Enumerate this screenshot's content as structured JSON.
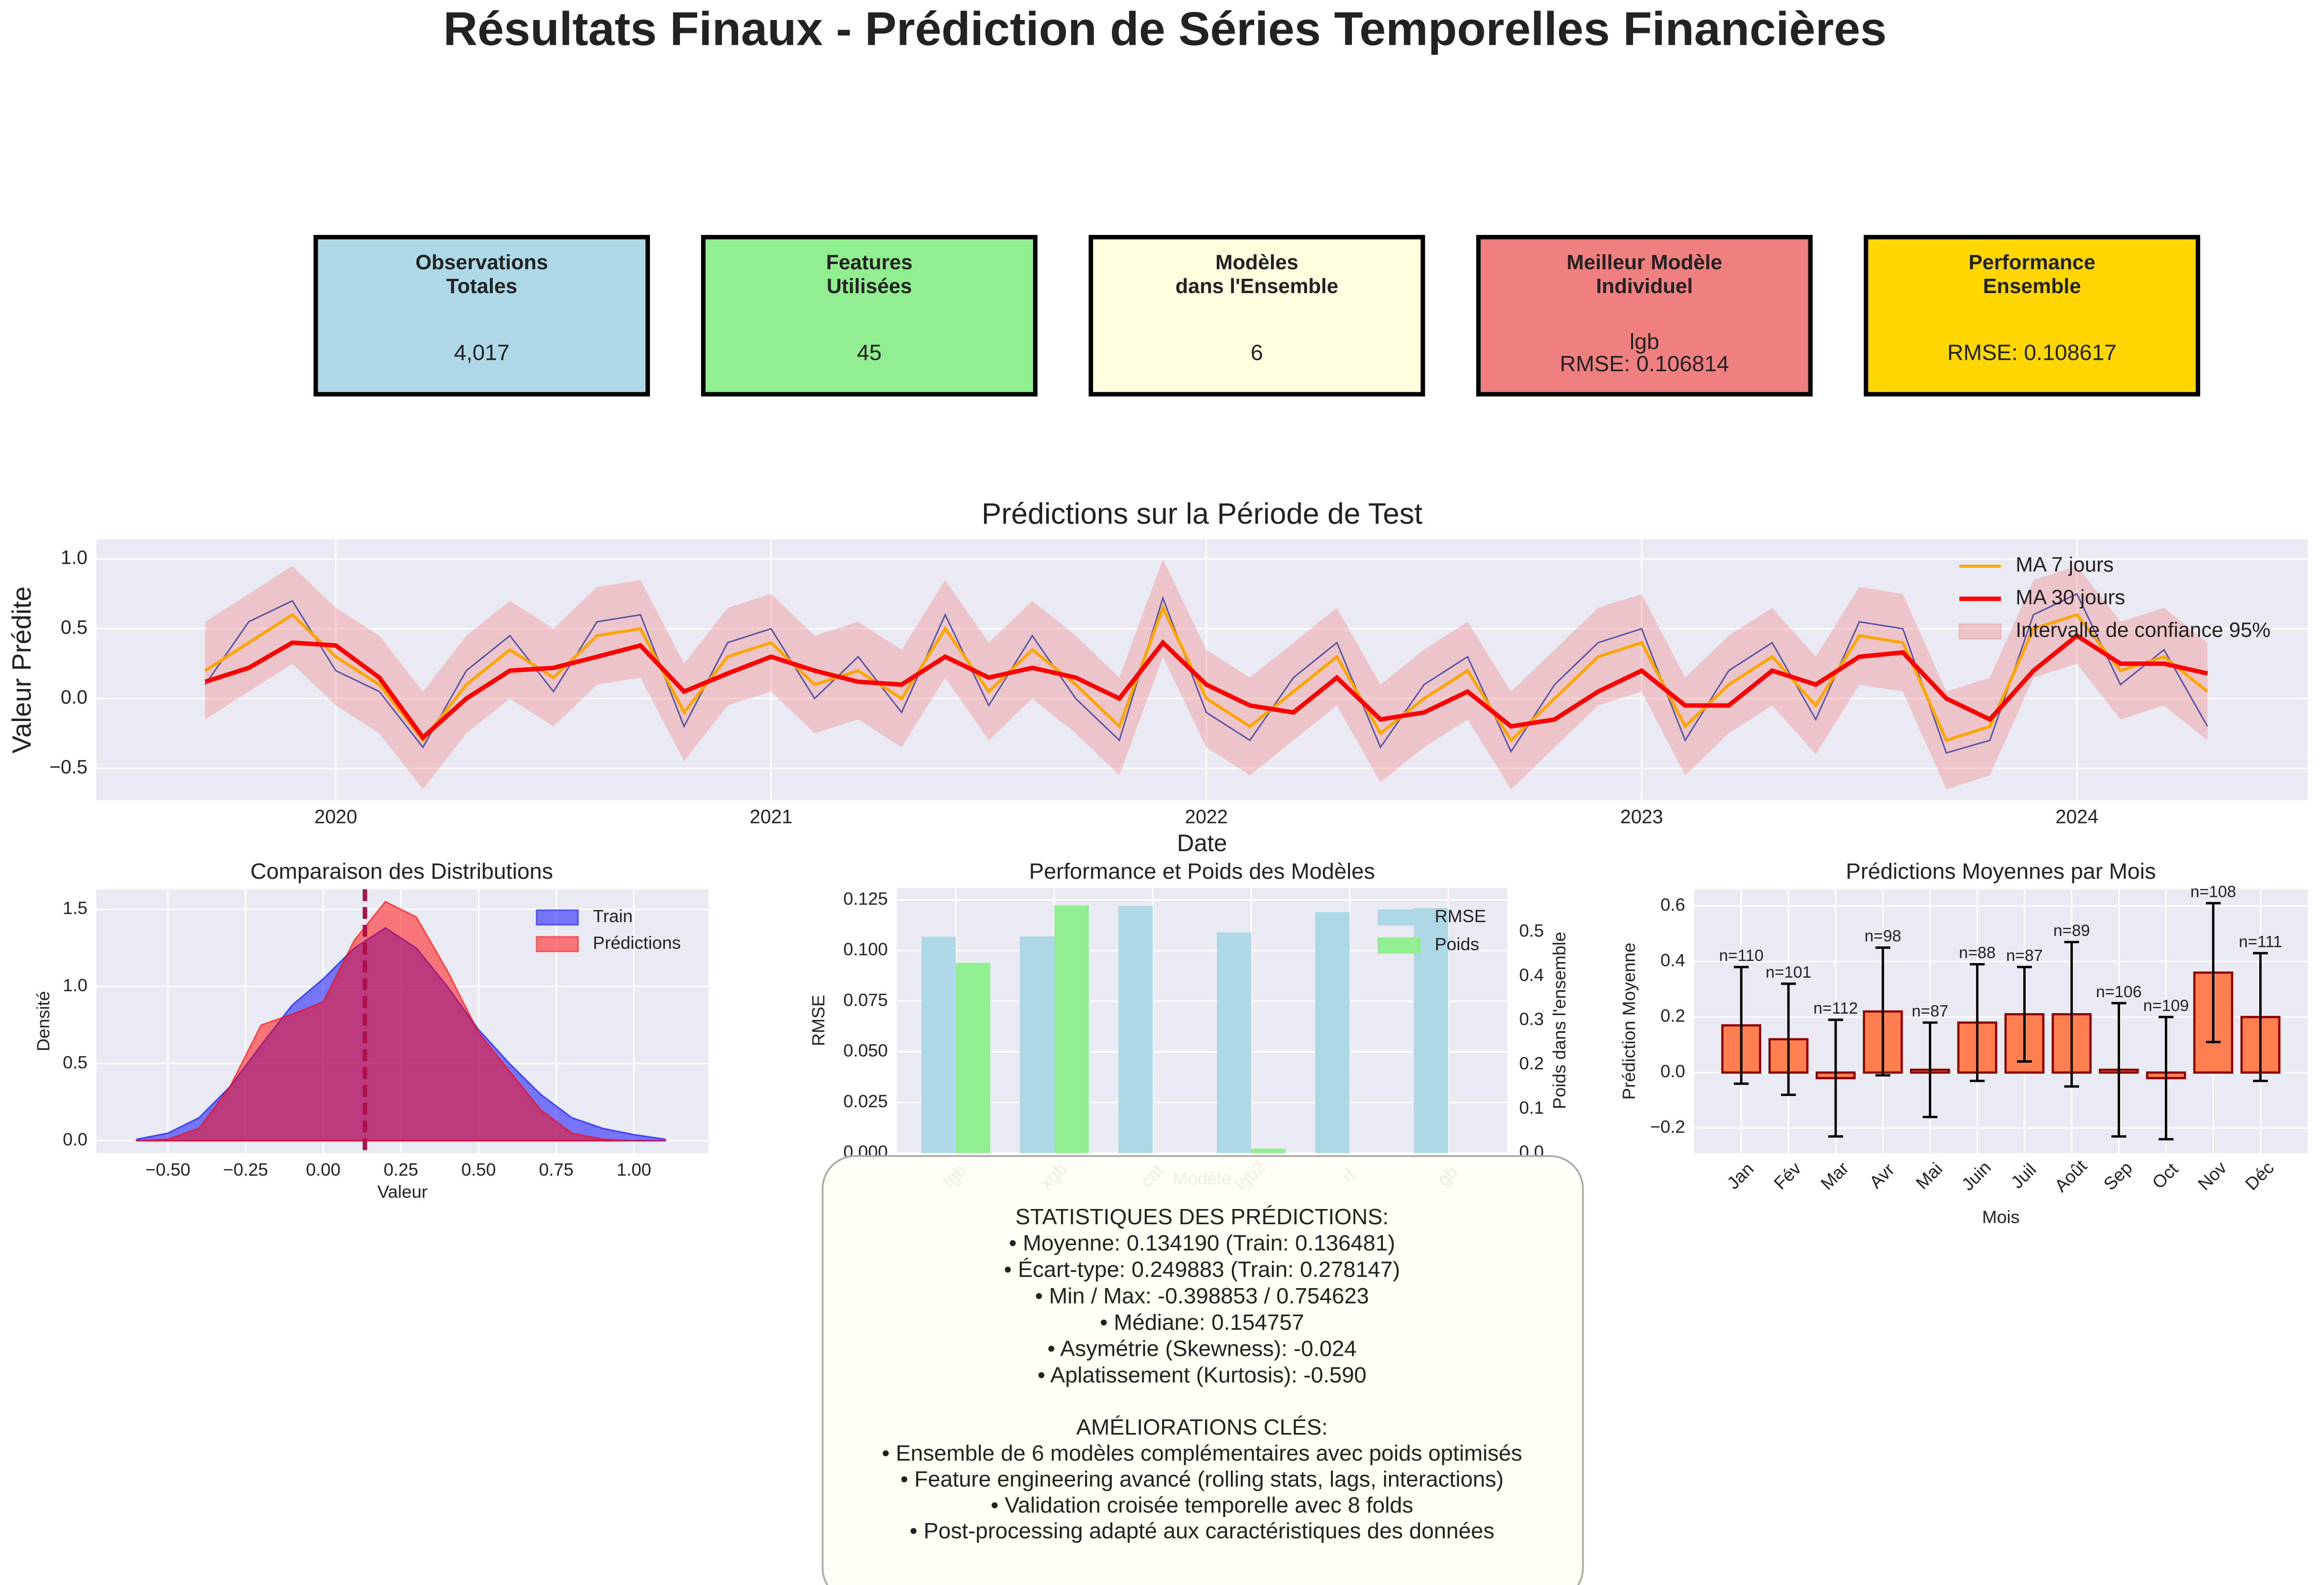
{
  "title": "Résultats Finaux - Prédiction de Séries Temporelles Financières",
  "cards": [
    {
      "title": [
        "Observations",
        "Totales"
      ],
      "value": [
        "4,017"
      ],
      "color": "#add8e6"
    },
    {
      "title": [
        "Features",
        "Utilisées"
      ],
      "value": [
        "45"
      ],
      "color": "#90ee90"
    },
    {
      "title": [
        "Modèles",
        "dans l'Ensemble"
      ],
      "value": [
        "6"
      ],
      "color": "#ffffe0"
    },
    {
      "title": [
        "Meilleur Modèle",
        "Individuel"
      ],
      "value": [
        "lgb",
        "RMSE: 0.106814"
      ],
      "color": "#f08080"
    },
    {
      "title": [
        "Performance",
        "Ensemble"
      ],
      "value": [
        "RMSE: 0.108617"
      ],
      "color": "#ffd700"
    }
  ],
  "stats_box": {
    "stats": [
      "STATISTIQUES DES PRÉDICTIONS:",
      "• Moyenne: 0.134190 (Train: 0.136481)",
      "• Écart-type: 0.249883 (Train: 0.278147)",
      "• Min / Max: -0.398853 / 0.754623",
      "• Médiane: 0.154757",
      "• Asymétrie (Skewness): -0.024",
      "• Aplatissement (Kurtosis): -0.590"
    ],
    "improvements": [
      "AMÉLIORATIONS CLÉS:",
      "• Ensemble de 6 modèles complémentaires avec poids optimisés",
      "• Feature engineering avancé (rolling stats, lags, interactions)",
      "• Validation croisée temporelle avec 8 folds",
      "• Post-processing adapté aux caractéristiques des données"
    ]
  },
  "chart_data": [
    {
      "type": "line",
      "title": "Prédictions sur la Période de Test",
      "xlabel": "Date",
      "ylabel": "Valeur Prédite",
      "x": [
        2019.7,
        2019.8,
        2019.9,
        2020.0,
        2020.1,
        2020.2,
        2020.3,
        2020.4,
        2020.5,
        2020.6,
        2020.7,
        2020.8,
        2020.9,
        2021.0,
        2021.1,
        2021.2,
        2021.3,
        2021.4,
        2021.5,
        2021.6,
        2021.7,
        2021.8,
        2021.9,
        2022.0,
        2022.1,
        2022.2,
        2022.3,
        2022.4,
        2022.5,
        2022.6,
        2022.7,
        2022.8,
        2022.9,
        2023.0,
        2023.1,
        2023.2,
        2023.3,
        2023.4,
        2023.5,
        2023.6,
        2023.7,
        2023.8,
        2023.9,
        2024.0,
        2024.1,
        2024.2,
        2024.3
      ],
      "series": [
        {
          "color": "#3f3fa0",
          "values": [
            0.1,
            0.55,
            0.7,
            0.2,
            0.05,
            -0.35,
            0.2,
            0.45,
            0.05,
            0.55,
            0.6,
            -0.2,
            0.4,
            0.5,
            0.0,
            0.3,
            -0.1,
            0.6,
            -0.05,
            0.45,
            0.0,
            -0.3,
            0.72,
            -0.1,
            -0.3,
            0.15,
            0.4,
            -0.35,
            0.1,
            0.3,
            -0.38,
            0.1,
            0.4,
            0.5,
            -0.3,
            0.2,
            0.4,
            -0.15,
            0.55,
            0.5,
            -0.39,
            -0.3,
            0.6,
            0.75,
            0.1,
            0.35,
            -0.2
          ]
        },
        {
          "name": "MA 7 jours",
          "color": "#ffa500",
          "values": [
            0.2,
            0.4,
            0.6,
            0.3,
            0.1,
            -0.3,
            0.1,
            0.35,
            0.15,
            0.45,
            0.5,
            -0.1,
            0.3,
            0.4,
            0.1,
            0.2,
            0.0,
            0.5,
            0.05,
            0.35,
            0.1,
            -0.2,
            0.65,
            0.0,
            -0.2,
            0.05,
            0.3,
            -0.25,
            0.0,
            0.2,
            -0.3,
            0.0,
            0.3,
            0.4,
            -0.2,
            0.1,
            0.3,
            -0.05,
            0.45,
            0.4,
            -0.3,
            -0.2,
            0.5,
            0.6,
            0.2,
            0.3,
            0.05
          ]
        },
        {
          "name": "MA 30 jours",
          "color": "#ff0000",
          "values": [
            0.12,
            0.22,
            0.4,
            0.38,
            0.15,
            -0.28,
            0.0,
            0.2,
            0.22,
            0.3,
            0.38,
            0.05,
            0.18,
            0.3,
            0.2,
            0.12,
            0.1,
            0.3,
            0.15,
            0.22,
            0.15,
            0.0,
            0.4,
            0.1,
            -0.05,
            -0.1,
            0.15,
            -0.15,
            -0.1,
            0.05,
            -0.2,
            -0.15,
            0.05,
            0.2,
            -0.05,
            -0.05,
            0.2,
            0.1,
            0.3,
            0.33,
            0.0,
            -0.15,
            0.2,
            0.45,
            0.25,
            0.25,
            0.18
          ]
        }
      ],
      "band": {
        "name": "Intervalle de confiance 95%",
        "color": "#f08080",
        "upper": [
          0.55,
          0.75,
          0.95,
          0.65,
          0.45,
          0.05,
          0.45,
          0.7,
          0.5,
          0.8,
          0.85,
          0.25,
          0.65,
          0.75,
          0.45,
          0.55,
          0.35,
          0.85,
          0.4,
          0.7,
          0.45,
          0.15,
          1.0,
          0.35,
          0.15,
          0.4,
          0.65,
          0.1,
          0.35,
          0.55,
          0.05,
          0.35,
          0.65,
          0.75,
          0.15,
          0.45,
          0.65,
          0.3,
          0.8,
          0.75,
          0.05,
          0.15,
          0.85,
          0.95,
          0.55,
          0.65,
          0.4
        ],
        "lower": [
          -0.15,
          0.05,
          0.25,
          -0.05,
          -0.25,
          -0.65,
          -0.25,
          0.0,
          -0.2,
          0.1,
          0.15,
          -0.45,
          -0.05,
          0.05,
          -0.25,
          -0.15,
          -0.35,
          0.15,
          -0.3,
          0.0,
          -0.25,
          -0.55,
          0.3,
          -0.35,
          -0.55,
          -0.3,
          -0.05,
          -0.6,
          -0.35,
          -0.15,
          -0.65,
          -0.35,
          -0.05,
          0.05,
          -0.55,
          -0.25,
          -0.05,
          -0.4,
          0.1,
          0.05,
          -0.65,
          -0.55,
          0.15,
          0.25,
          -0.15,
          -0.05,
          -0.3
        ]
      },
      "xlim": [
        2019.45,
        2024.53
      ],
      "ylim": [
        -0.73,
        1.14
      ],
      "xticks": [
        2020,
        2021,
        2022,
        2023,
        2024
      ],
      "yticks": [
        {
          "value": -0.5,
          "label": "−0.5"
        },
        {
          "value": 0,
          "label": "0.0"
        },
        {
          "value": 0.5,
          "label": "0.5"
        },
        {
          "value": 1,
          "label": "1.0"
        }
      ],
      "grid": true,
      "legend": "upper right"
    },
    {
      "type": "area",
      "title": "Comparaison des Distributions",
      "xlabel": "Valeur",
      "ylabel": "Densité",
      "x": [
        -0.6,
        -0.5,
        -0.4,
        -0.3,
        -0.2,
        -0.1,
        0.0,
        0.1,
        0.2,
        0.3,
        0.4,
        0.5,
        0.6,
        0.7,
        0.8,
        0.9,
        1.0,
        1.1
      ],
      "series": [
        {
          "name": "Train",
          "color": "#0000ff",
          "values": [
            0.01,
            0.05,
            0.15,
            0.35,
            0.62,
            0.88,
            1.05,
            1.25,
            1.38,
            1.25,
            1.0,
            0.72,
            0.5,
            0.3,
            0.15,
            0.08,
            0.04,
            0.01
          ]
        },
        {
          "name": "Prédictions",
          "color": "#ff0000",
          "values": [
            0,
            0.01,
            0.08,
            0.35,
            0.75,
            0.82,
            0.9,
            1.3,
            1.55,
            1.45,
            1.1,
            0.7,
            0.45,
            0.2,
            0.05,
            0.01,
            0,
            0
          ]
        }
      ],
      "vline": 0.13419,
      "vline_color": "#b0104a",
      "xlim": [
        -0.73,
        1.24
      ],
      "ylim": [
        -0.08,
        1.63
      ],
      "xticks": [
        {
          "value": -0.5,
          "label": "−0.50"
        },
        {
          "value": -0.25,
          "label": "−0.25"
        },
        {
          "value": 0,
          "label": "0.00"
        },
        {
          "value": 0.25,
          "label": "0.25"
        },
        {
          "value": 0.5,
          "label": "0.50"
        },
        {
          "value": 0.75,
          "label": "0.75"
        },
        {
          "value": 1,
          "label": "1.00"
        }
      ],
      "yticks": [
        {
          "value": 0,
          "label": "0.0"
        },
        {
          "value": 0.5,
          "label": "0.5"
        },
        {
          "value": 1,
          "label": "1.0"
        },
        {
          "value": 1.5,
          "label": "1.5"
        }
      ],
      "grid": true,
      "legend": "upper right"
    },
    {
      "type": "bar",
      "title": "Performance et Poids des Modèles",
      "xlabel": "Modèle",
      "ylabel": "RMSE",
      "y2label": "Poids dans l'ensemble",
      "categories": [
        "lgb",
        "xgb",
        "cat",
        "lgb2",
        "rf",
        "gb"
      ],
      "series": [
        {
          "name": "RMSE",
          "color": "#add8e6",
          "values": [
            0.1068,
            0.107,
            0.122,
            0.109,
            0.119,
            0.121
          ]
        },
        {
          "name": "Poids",
          "color": "#90ee90",
          "axis": "y2",
          "values": [
            0.43,
            0.56,
            0,
            0.01,
            0,
            0
          ]
        }
      ],
      "ylim": [
        0,
        0.131
      ],
      "y2lim": [
        0,
        0.6
      ],
      "yticks": [
        {
          "value": 0,
          "label": "0.000"
        },
        {
          "value": 0.025,
          "label": "0.025"
        },
        {
          "value": 0.05,
          "label": "0.050"
        },
        {
          "value": 0.075,
          "label": "0.075"
        },
        {
          "value": 0.1,
          "label": "0.100"
        },
        {
          "value": 0.125,
          "label": "0.125"
        }
      ],
      "y2ticks": [
        {
          "value": 0,
          "label": "0.0"
        },
        {
          "value": 0.1,
          "label": "0.1"
        },
        {
          "value": 0.2,
          "label": "0.2"
        },
        {
          "value": 0.3,
          "label": "0.3"
        },
        {
          "value": 0.4,
          "label": "0.4"
        },
        {
          "value": 0.5,
          "label": "0.5"
        }
      ],
      "ycolor": "#0000ff",
      "y2color": "#008000",
      "grid": true,
      "legend": "upper right"
    },
    {
      "type": "bar_error",
      "title": "Prédictions Moyennes par Mois",
      "xlabel": "Mois",
      "ylabel": "Prédiction Moyenne",
      "categories": [
        "Jan",
        "Fév",
        "Mar",
        "Avr",
        "Mai",
        "Juin",
        "Juil",
        "Août",
        "Sep",
        "Oct",
        "Nov",
        "Déc"
      ],
      "values": [
        0.17,
        0.12,
        -0.02,
        0.22,
        0.01,
        0.18,
        0.21,
        0.21,
        0.01,
        -0.02,
        0.36,
        0.2
      ],
      "errors": [
        0.21,
        0.2,
        0.21,
        0.23,
        0.17,
        0.21,
        0.17,
        0.26,
        0.24,
        0.22,
        0.25,
        0.23
      ],
      "n_labels": [
        "n=110",
        "n=101",
        "n=112",
        "n=98",
        "n=87",
        "n=88",
        "n=87",
        "n=89",
        "n=106",
        "n=109",
        "n=108",
        "n=111"
      ],
      "color": "#ff7f50",
      "edgecolor": "#8b0000",
      "ylim": [
        -0.29,
        0.66
      ],
      "yticks": [
        {
          "value": -0.2,
          "label": "−0.2"
        },
        {
          "value": 0,
          "label": "0.0"
        },
        {
          "value": 0.2,
          "label": "0.2"
        },
        {
          "value": 0.4,
          "label": "0.4"
        },
        {
          "value": 0.6,
          "label": "0.6"
        }
      ],
      "grid": true
    }
  ]
}
